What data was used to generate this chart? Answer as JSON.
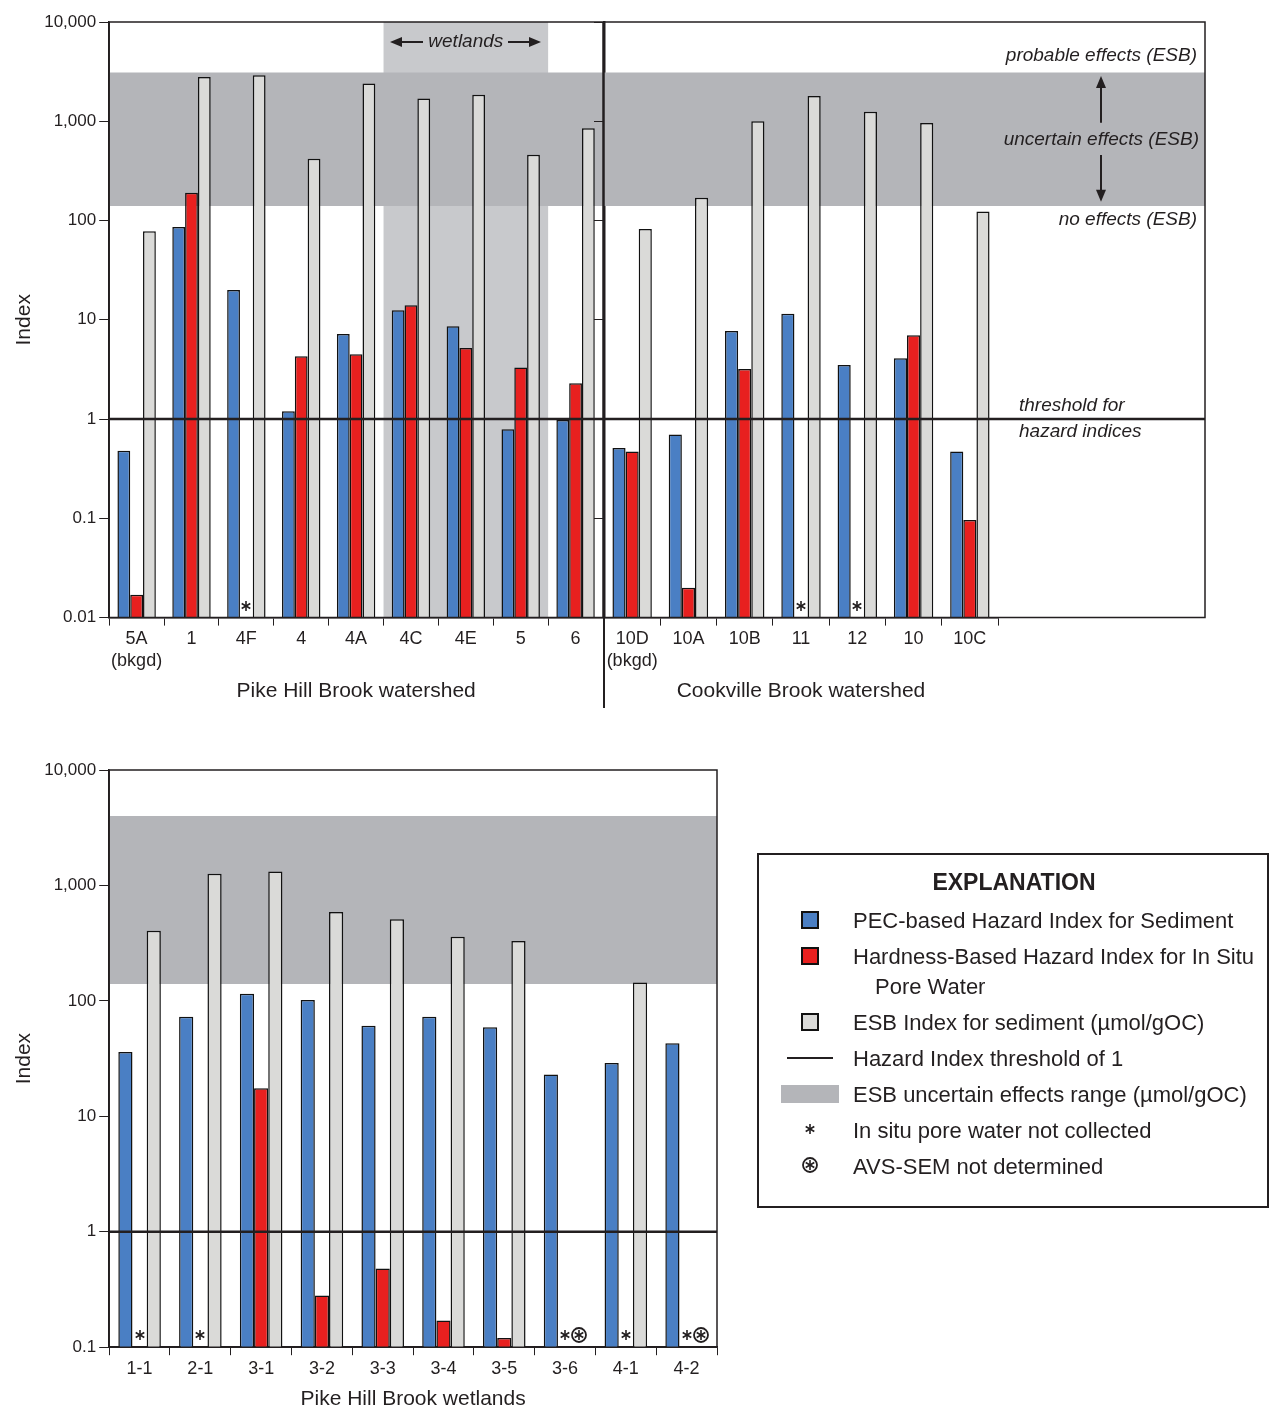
{
  "chart_data": [
    {
      "type": "bar",
      "xlabel": "Pike Hill Brook watershed",
      "ylabel": "Index",
      "log": "y",
      "categories": [
        "5A\n(bkgd)",
        "1",
        "4F",
        "4",
        "4A",
        "4C",
        "4E",
        "5",
        "6"
      ],
      "series": [
        {
          "color": "#4a7fc4",
          "values": [
            0.48,
            86,
            20,
            1.2,
            7.2,
            12.5,
            8.6,
            0.79,
            0.98
          ]
        },
        {
          "color": "#e8201f",
          "values": [
            0.017,
            190,
            null,
            4.3,
            4.5,
            14,
            5.2,
            3.3,
            2.3
          ]
        },
        {
          "color": "#dadad8",
          "values": [
            78,
            2800,
            2900,
            420,
            2400,
            1700,
            1850,
            460,
            850
          ]
        }
      ],
      "ylim": [
        0.01,
        10000
      ],
      "yticks": [
        0.01,
        0.1,
        1,
        10,
        100,
        {
          "value": 1000,
          "label": "1,000"
        },
        {
          "value": 10000,
          "label": "10,000"
        }
      ],
      "bands": [
        {
          "axis": "x",
          "from": "4C",
          "to": "5",
          "label": "wetlands",
          "color": "#c8c9cc"
        },
        {
          "axis": "y",
          "from": 140,
          "to": 3100,
          "color": "#b4b5b9"
        }
      ],
      "ref_lines": [
        {
          "axis": "y",
          "value": 1
        }
      ]
    },
    {
      "type": "bar",
      "xlabel": "Cookville Brook watershed",
      "log": "y",
      "tick_labels": "x",
      "categories": [
        "10D\n(bkgd)",
        "10A",
        "10B",
        "11",
        "12",
        "10",
        "10C"
      ],
      "series": [
        {
          "color": "#4a7fc4",
          "values": [
            0.51,
            0.7,
            7.7,
            11.5,
            3.5,
            4.1,
            0.47
          ]
        },
        {
          "color": "#e8201f",
          "values": [
            0.47,
            0.02,
            3.2,
            null,
            null,
            7.0,
            0.096
          ]
        },
        {
          "color": "#dadad8",
          "values": [
            82,
            170,
            1000,
            1800,
            1250,
            960,
            123
          ]
        }
      ],
      "ylim": [
        0.01,
        10000
      ],
      "yticks": [
        {
          "value": 0.01,
          "label": null
        },
        {
          "value": 0.1,
          "label": null
        },
        {
          "value": 1,
          "label": null
        },
        {
          "value": 10,
          "label": null
        },
        {
          "value": 100,
          "label": null
        },
        {
          "value": 1000,
          "label": null
        },
        {
          "value": 10000,
          "label": null
        }
      ],
      "bands": [
        {
          "axis": "y",
          "from": 140,
          "to": 3100,
          "label": "uncertain effects (ESB)",
          "color": "#b4b5b9"
        }
      ],
      "ref_lines": [
        {
          "axis": "y",
          "value": 1,
          "label": "threshold for hazard indices"
        }
      ],
      "annotations": [
        "probable effects (ESB)",
        "no effects (ESB)"
      ]
    },
    {
      "type": "bar",
      "xlabel": "Pike Hill Brook wetlands",
      "ylabel": "Index",
      "log": "y",
      "legend": "right",
      "legend_title": "EXPLANATION",
      "categories": [
        "1-1",
        "2-1",
        "3-1",
        "3-2",
        "3-3",
        "3-4",
        "3-5",
        "3-6",
        "4-1",
        "4-2"
      ],
      "series": [
        {
          "name": "PEC-based Hazard Index for Sediment",
          "color": "#4a7fc4",
          "values": [
            36,
            73,
            115,
            102,
            61,
            73,
            59,
            23,
            29,
            43
          ]
        },
        {
          "name": "Hardness-Based Hazard Index for In Situ Pore Water",
          "color": "#e8201f",
          "values": [
            null,
            null,
            17.5,
            0.28,
            0.48,
            0.17,
            0.12,
            null,
            null,
            null
          ]
        },
        {
          "name": "ESB Index for sediment (µmol/gOC)",
          "color": "#dadad8",
          "values": [
            405,
            1260,
            1320,
            590,
            510,
            360,
            330,
            null,
            144,
            null
          ]
        }
      ],
      "ylim": [
        0.1,
        10000
      ],
      "yticks": [
        0.1,
        1,
        10,
        100,
        {
          "value": 1000,
          "label": "1,000"
        },
        {
          "value": 10000,
          "label": "10,000"
        }
      ],
      "bands": [
        {
          "axis": "y",
          "from": 140,
          "to": 4000,
          "label": "ESB uncertain effects range (µmol/gOC)",
          "color": "#b4b5b9"
        }
      ],
      "ref_lines": [
        {
          "axis": "y",
          "value": 1,
          "label": "Hazard Index threshold of 1"
        }
      ],
      "annotations": [
        "In situ pore water not collected",
        "AVS-SEM not determined"
      ]
    }
  ]
}
